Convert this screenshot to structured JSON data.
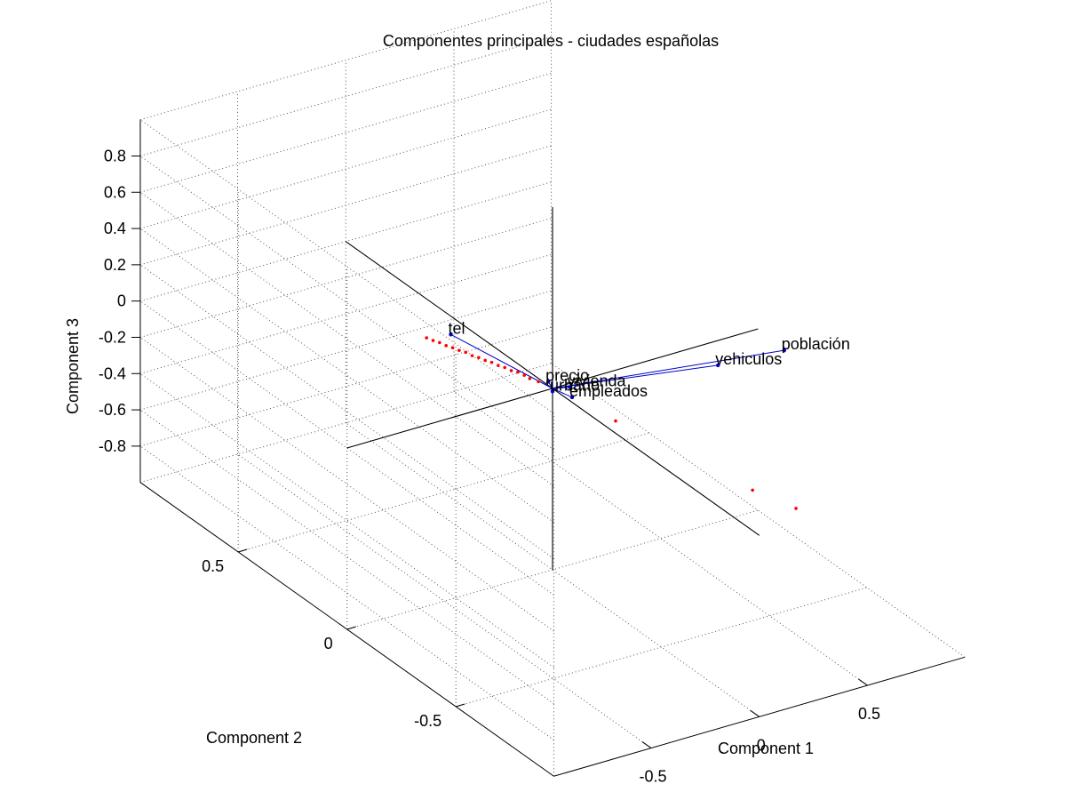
{
  "chart_data": {
    "type": "scatter",
    "title": "Componentes principales - ciudades españolas",
    "xlabel": "Component 1",
    "ylabel": "Component 2",
    "zlabel": "Component 3",
    "xlim": [
      -0.95,
      0.95
    ],
    "ylim": [
      -0.95,
      0.95
    ],
    "zlim": [
      -1,
      1
    ],
    "xticks": [
      -0.5,
      0,
      0.5
    ],
    "yticks": [
      -0.5,
      0,
      0.5
    ],
    "zticks": [
      -0.8,
      -0.6,
      -0.4,
      -0.2,
      0,
      0.2,
      0.4,
      0.6,
      0.8
    ],
    "grid": true,
    "view": "3d",
    "colors": {
      "vectors": "#0000cc",
      "scores": "#ff0000",
      "reference_lines": "#000000"
    },
    "vectors": [
      {
        "label": "vehiculos",
        "x": -0.02,
        "y": -0.78,
        "z": 0.8
      },
      {
        "label": "tel",
        "x": -0.42,
        "y": 0.05,
        "z": 0.4
      },
      {
        "label": "población",
        "x": 0.92,
        "y": -0.15,
        "z": 0.02
      },
      {
        "label": "precio",
        "x": 0.0,
        "y": 0.02,
        "z": 0.02
      },
      {
        "label": "vivienda",
        "x": 0.05,
        "y": -0.03,
        "z": 0.015
      },
      {
        "label": "empleados",
        "x": 0.04,
        "y": -0.05,
        "z": -0.02
      },
      {
        "label": "urbano",
        "x": 0.02,
        "y": 0.02,
        "z": -0.04
      }
    ],
    "scores": [
      {
        "x": 0.22,
        "y": -0.9,
        "z": 0.03
      },
      {
        "x": 0.17,
        "y": -0.75,
        "z": 0.02
      },
      {
        "x": 0.04,
        "y": -0.25,
        "z": 0.02
      },
      {
        "x": -0.015,
        "y": 0.05,
        "z": 0.0
      },
      {
        "x": -0.025,
        "y": 0.08,
        "z": -0.005
      },
      {
        "x": -0.03,
        "y": 0.1,
        "z": -0.002
      },
      {
        "x": -0.04,
        "y": 0.12,
        "z": 0.002
      },
      {
        "x": -0.05,
        "y": 0.14,
        "z": -0.004
      },
      {
        "x": -0.06,
        "y": 0.16,
        "z": 0.0
      },
      {
        "x": -0.07,
        "y": 0.18,
        "z": -0.003
      },
      {
        "x": -0.08,
        "y": 0.2,
        "z": 0.001
      },
      {
        "x": -0.09,
        "y": 0.22,
        "z": -0.002
      },
      {
        "x": -0.1,
        "y": 0.24,
        "z": 0.0
      },
      {
        "x": -0.11,
        "y": 0.26,
        "z": -0.003
      },
      {
        "x": -0.12,
        "y": 0.28,
        "z": 0.002
      },
      {
        "x": -0.13,
        "y": 0.3,
        "z": -0.001
      },
      {
        "x": -0.14,
        "y": 0.32,
        "z": 0.0
      },
      {
        "x": -0.15,
        "y": 0.34,
        "z": -0.002
      },
      {
        "x": -0.16,
        "y": 0.36,
        "z": 0.001
      },
      {
        "x": -0.17,
        "y": 0.38,
        "z": -0.001
      },
      {
        "x": -0.18,
        "y": 0.4,
        "z": 0.0
      }
    ]
  }
}
